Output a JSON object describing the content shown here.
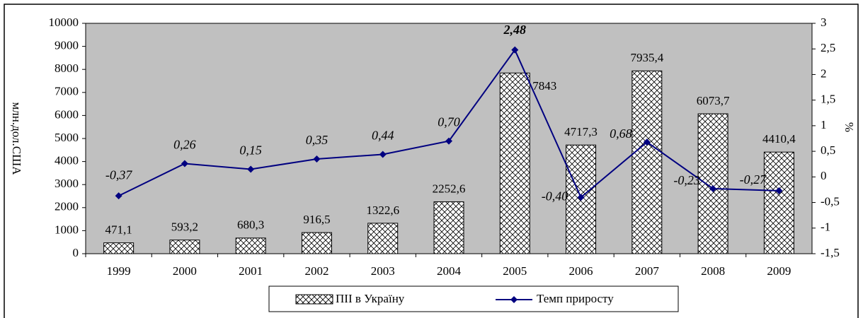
{
  "chart_data": {
    "type": "bar",
    "categories": [
      "1999",
      "2000",
      "2001",
      "2002",
      "2003",
      "2004",
      "2005",
      "2006",
      "2007",
      "2008",
      "2009"
    ],
    "ylabel": "млн.дол.США",
    "y2label": "%",
    "ylim": [
      0,
      10000
    ],
    "yticks": [
      0,
      1000,
      2000,
      3000,
      4000,
      5000,
      6000,
      7000,
      8000,
      9000,
      10000
    ],
    "y2lim": [
      -1.5,
      3
    ],
    "y2ticks": [
      {
        "value": -1.5,
        "label": "-1,5"
      },
      -1,
      {
        "value": -0.5,
        "label": "-0,5"
      },
      0,
      {
        "value": 0.5,
        "label": "0,5"
      },
      1,
      {
        "value": 1.5,
        "label": "1,5"
      },
      2,
      {
        "value": 2.5,
        "label": "2,5"
      },
      3
    ],
    "background": "#c0c0c0",
    "series": [
      {
        "name": "ПІІ в Україну",
        "type": "bar",
        "color": "#ffffff",
        "values": [
          471.1,
          593.2,
          680.3,
          916.5,
          1322.6,
          2252.6,
          7843,
          4717.3,
          7935.4,
          6073.7,
          4410.4
        ],
        "value_labels": [
          "471,1",
          "593,2",
          "680,3",
          "916,5",
          "1322,6",
          "2252,6",
          "7843",
          "4717,3",
          "7935,4",
          "6073,7",
          "4410,4"
        ]
      },
      {
        "name": "Темп приросту",
        "type": "line",
        "axis": "y2",
        "color": "#000080",
        "values": [
          -0.37,
          0.26,
          0.15,
          0.35,
          0.44,
          0.7,
          2.48,
          -0.4,
          0.68,
          -0.23,
          -0.27
        ],
        "value_labels": [
          "-0,37",
          "0,26",
          "0,15",
          "0,35",
          "0,44",
          "0,70",
          "2,48",
          "-0,40",
          "0,68",
          "-0,23",
          "-0,27"
        ]
      }
    ],
    "legend": "bottom"
  }
}
